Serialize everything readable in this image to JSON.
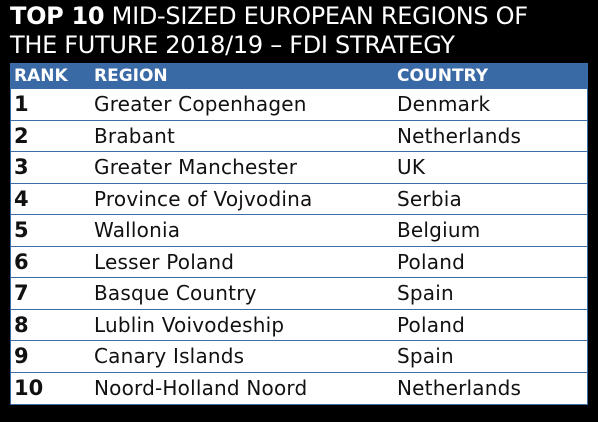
{
  "title": {
    "lead": "TOP 10",
    "line1_rest": " MID-SIZED EUROPEAN REGIONS OF",
    "line2": "THE FUTURE 2018/19 – FDI STRATEGY"
  },
  "table": {
    "headers": {
      "rank": "RANK",
      "region": "REGION",
      "country": "COUNTRY"
    },
    "rows": [
      {
        "rank": "1",
        "region": "Greater Copenhagen",
        "country": "Denmark"
      },
      {
        "rank": "2",
        "region": "Brabant",
        "country": "Netherlands"
      },
      {
        "rank": "3",
        "region": "Greater Manchester",
        "country": "UK"
      },
      {
        "rank": "4",
        "region": "Province of Vojvodina",
        "country": "Serbia"
      },
      {
        "rank": "5",
        "region": "Wallonia",
        "country": "Belgium"
      },
      {
        "rank": "6",
        "region": "Lesser Poland",
        "country": "Poland"
      },
      {
        "rank": "7",
        "region": "Basque Country",
        "country": "Spain"
      },
      {
        "rank": "8",
        "region": "Lublin Voivodeship",
        "country": "Poland"
      },
      {
        "rank": "9",
        "region": "Canary Islands",
        "country": "Spain"
      },
      {
        "rank": "10",
        "region": "Noord-Holland Noord",
        "country": "Netherlands"
      }
    ]
  },
  "colors": {
    "background": "#000000",
    "header_fill": "#3a6aa6",
    "rule": "#3b6ea8",
    "text": "#111111",
    "title_text": "#ffffff"
  }
}
